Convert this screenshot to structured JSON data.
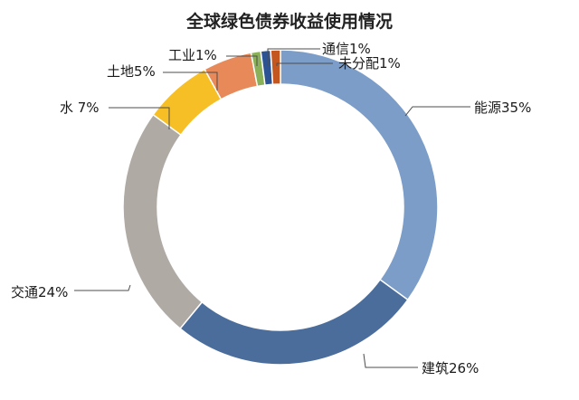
{
  "chart_data": {
    "type": "pie",
    "variant": "donut",
    "title": "全球绿色债券收益使用情况",
    "categories": [
      "能源",
      "建筑",
      "交通",
      "水",
      "土地",
      "工业",
      "通信",
      "未分配"
    ],
    "values": [
      35,
      26,
      24,
      7,
      5,
      1,
      1,
      1
    ],
    "unit": "%",
    "labels": [
      "能源35%",
      "建筑26%",
      "交通24%",
      "水 7%",
      "土地5%",
      "工业1%",
      "通信1%",
      "未分配1%"
    ],
    "colors": [
      "#7b9dc8",
      "#4b6d9b",
      "#b0aaa5",
      "#f7bf26",
      "#e8895a",
      "#8ab05a",
      "#2c5494",
      "#c4561f"
    ],
    "legend": "none",
    "start_angle_degrees": 0,
    "direction": "clockwise"
  }
}
